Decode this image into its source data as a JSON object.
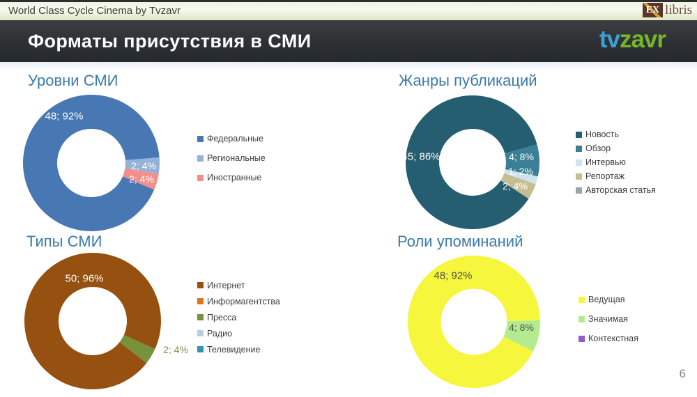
{
  "slide": {
    "topbar": {
      "text": "World Class Cycle Cinema by Tvzavr",
      "logo_ex": "EX",
      "logo_libris": "libris"
    },
    "header": {
      "title": "Форматы присутствия в СМИ",
      "logo_tv": "tv",
      "logo_zavr": "zavr"
    },
    "page_number": "6"
  },
  "chart_data": [
    {
      "type": "donut",
      "title": "Уровни СМИ",
      "legend_position": "right",
      "label_format": "value; percent",
      "start_angle": 113,
      "series": [
        {
          "label": "Федеральные",
          "value": 48,
          "pct": 92,
          "color": "#4878b4",
          "data_label": "48; 92%"
        },
        {
          "label": "Региональные",
          "value": 2,
          "pct": 4,
          "color": "#94b2d8",
          "data_label": "2; 4%"
        },
        {
          "label": "Иностранные",
          "value": 2,
          "pct": 4,
          "color": "#f28f8a",
          "data_label": "2; 4%"
        }
      ]
    },
    {
      "type": "donut",
      "title": "Жанры публикаций",
      "legend_position": "right",
      "label_format": "value; percent",
      "start_angle": 123,
      "series": [
        {
          "label": "Новость",
          "value": 45,
          "pct": 86,
          "color": "#265e71",
          "data_label": "45; 86%"
        },
        {
          "label": "Обзор",
          "value": 4,
          "pct": 8,
          "color": "#3b7f96",
          "data_label": "4; 8%"
        },
        {
          "label": "Интервью",
          "value": 1,
          "pct": 2,
          "color": "#cfe3ed",
          "data_label": "1; 2%"
        },
        {
          "label": "Репортаж",
          "value": 2,
          "pct": 4,
          "color": "#c6bd92",
          "data_label": "2; 4%"
        },
        {
          "label": "Авторская статья",
          "value": 0,
          "pct": 0,
          "color": "#9da3a8",
          "data_label": null
        }
      ]
    },
    {
      "type": "donut",
      "title": "Типы СМИ",
      "legend_position": "right",
      "label_format": "value; percent",
      "start_angle": 128,
      "series": [
        {
          "label": "Интернет",
          "value": 50,
          "pct": 96,
          "color": "#96500f",
          "data_label": "50; 96%"
        },
        {
          "label": "Информагентства",
          "value": 0,
          "pct": 0,
          "color": "#e0751c",
          "data_label": null
        },
        {
          "label": "Пресса",
          "value": 2,
          "pct": 4,
          "color": "#76933c",
          "data_label": "2; 4%"
        },
        {
          "label": "Радио",
          "value": 0,
          "pct": 0,
          "color": "#b4cfdf",
          "data_label": null
        },
        {
          "label": "Телевидение",
          "value": 0,
          "pct": 0,
          "color": "#3492ad",
          "data_label": null
        }
      ]
    },
    {
      "type": "donut",
      "title": "Роли упоминаний",
      "legend_position": "right",
      "label_format": "value; percent",
      "start_angle": 116.5,
      "series": [
        {
          "label": "Ведущая",
          "value": 48,
          "pct": 92,
          "color": "#f6f63c",
          "data_label": "48; 92%"
        },
        {
          "label": "Значимая",
          "value": 4,
          "pct": 8,
          "color": "#b4eb8f",
          "data_label": "4; 8%"
        },
        {
          "label": "Контекстная",
          "value": 0,
          "pct": 0,
          "color": "#9a57c6",
          "data_label": null
        }
      ]
    }
  ]
}
